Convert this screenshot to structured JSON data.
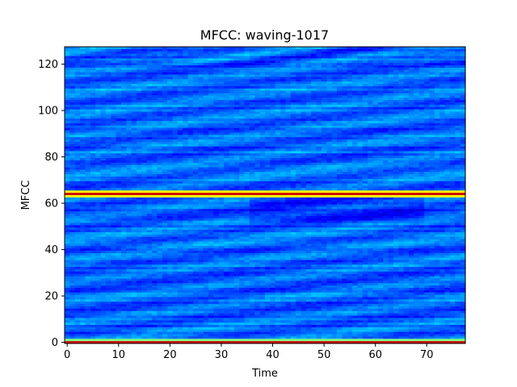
{
  "chart_data": {
    "type": "heatmap",
    "title": "MFCC: waving-1017",
    "xlabel": "Time",
    "ylabel": "MFCC",
    "xlim": [
      -0.5,
      77.5
    ],
    "ylim": [
      127.5,
      -0.5
    ],
    "x_ticks": [
      0,
      10,
      20,
      30,
      40,
      50,
      60,
      70
    ],
    "y_ticks": [
      0,
      20,
      40,
      60,
      80,
      100,
      120
    ],
    "n_time": 78,
    "n_coeffs": 128,
    "colormap": "jet",
    "grid": false,
    "notable_rows": [
      {
        "mfcc": 62,
        "level": "high"
      },
      {
        "mfcc": 63,
        "level": "max"
      },
      {
        "mfcc": 64,
        "level": "high"
      },
      {
        "mfcc": 126,
        "level": "mid-high"
      },
      {
        "mfcc": 127,
        "level": "max"
      }
    ]
  }
}
